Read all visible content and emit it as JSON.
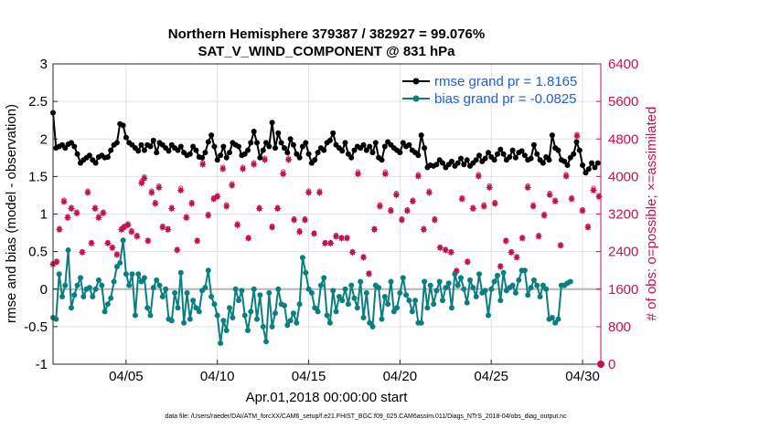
{
  "chart_data": {
    "type": "line",
    "title_line1": "Northern Hemisphere 379387 / 382927 = 99.076%",
    "title_line2": "SAT_V_WIND_COMPONENT @ 831 hPa",
    "xlabel": "Apr.01,2018 00:00:00 start",
    "ylabel": "rmse and bias (model - observation)",
    "ylabel_right": "# of obs: o=possible; ×=assimilated",
    "xlim": [
      1,
      31
    ],
    "ylim": [
      -1,
      3
    ],
    "ylim_right": [
      0,
      6400
    ],
    "x_ticks": [
      5,
      10,
      15,
      20,
      25,
      30
    ],
    "x_tick_labels": [
      "04/05",
      "04/10",
      "04/15",
      "04/20",
      "04/25",
      "04/30"
    ],
    "y_ticks": [
      -1,
      -0.5,
      0,
      0.5,
      1,
      1.5,
      2,
      2.5,
      3
    ],
    "y_tick_labels": [
      "-1",
      "-0.5",
      "0",
      "0.5",
      "1",
      "1.5",
      "2",
      "2.5",
      "3"
    ],
    "y_right_ticks": [
      0,
      800,
      1600,
      2400,
      3200,
      4000,
      4800,
      5600,
      6400
    ],
    "y_right_tick_labels": [
      "0",
      "800",
      "1600",
      "2400",
      "3200",
      "4000",
      "4800",
      "5600",
      "6400"
    ],
    "grid": true,
    "legend_position": "top-right",
    "series": [
      {
        "name": "rmse grand pr = 1.8165",
        "color": "#000000",
        "values": [
          2.35,
          1.88,
          1.9,
          1.92,
          1.88,
          1.93,
          1.95,
          1.9,
          1.8,
          1.68,
          1.72,
          1.75,
          1.78,
          1.72,
          1.68,
          1.76,
          1.78,
          1.75,
          1.76,
          1.85,
          1.92,
          1.95,
          2.2,
          2.18,
          2.02,
          1.95,
          1.92,
          1.88,
          1.84,
          1.92,
          1.85,
          1.92,
          1.9,
          1.98,
          1.82,
          1.95,
          1.92,
          1.88,
          1.84,
          1.92,
          1.88,
          1.85,
          1.9,
          1.82,
          1.78,
          1.8,
          1.9,
          1.85,
          1.76,
          1.75,
          1.82,
          1.96,
          2.05,
          1.9,
          1.72,
          1.78,
          1.9,
          1.75,
          1.82,
          1.95,
          1.92,
          1.9,
          1.78,
          1.8,
          1.85,
          1.95,
          2.1,
          1.95,
          1.75,
          1.85,
          1.95,
          1.9,
          2.22,
          1.88,
          2.08,
          1.95,
          1.88,
          1.82,
          2.0,
          1.92,
          1.8,
          1.75,
          1.9,
          1.95,
          1.8,
          1.68,
          1.72,
          1.82,
          1.88,
          1.85,
          1.95,
          1.98,
          2.08,
          1.92,
          1.88,
          1.84,
          1.95,
          1.8,
          1.75,
          1.85,
          1.9,
          1.88,
          1.92,
          1.85,
          1.9,
          1.82,
          1.95,
          1.75,
          1.72,
          1.9,
          1.96,
          1.92,
          1.88,
          1.85,
          1.82,
          1.95,
          1.9,
          1.92,
          1.85,
          1.82,
          1.78,
          2.05,
          1.88,
          1.62,
          1.65,
          1.64,
          1.66,
          1.72,
          1.68,
          1.62,
          1.66,
          1.7,
          1.64,
          1.68,
          1.74,
          1.66,
          1.72,
          1.64,
          1.68,
          1.72,
          1.78,
          1.7,
          1.74,
          1.82,
          1.76,
          1.72,
          1.8,
          1.86,
          1.8,
          1.72,
          1.76,
          1.85,
          1.75,
          1.82,
          1.84,
          1.78,
          1.72,
          1.74,
          1.92,
          1.8,
          1.72,
          1.68,
          1.76,
          1.72,
          2.05,
          1.88,
          1.85,
          1.72,
          1.7,
          1.65,
          1.75,
          1.8,
          1.96,
          1.85,
          1.65,
          1.55,
          1.6,
          1.68,
          1.62,
          1.68
        ],
        "x_start": 1,
        "x_step": 0.1667
      },
      {
        "name": "bias grand pr = -0.0825",
        "color": "#0b7f7f",
        "values": [
          -0.38,
          -0.4,
          0.2,
          -0.1,
          0.05,
          0.52,
          -0.25,
          -0.08,
          0.05,
          0.15,
          -0.1,
          0.0,
          0.02,
          -0.1,
          0.0,
          0.12,
          0.05,
          -0.3,
          -0.2,
          -0.12,
          0.1,
          0.3,
          0.35,
          0.65,
          0.2,
          0.05,
          0.2,
          -0.35,
          0.2,
          0.1,
          0.15,
          -0.25,
          -0.35,
          0.02,
          0.12,
          0.05,
          -0.1,
          0.0,
          -0.4,
          -0.42,
          -0.05,
          -0.25,
          0.22,
          -0.45,
          -0.05,
          -0.4,
          -0.15,
          -0.25,
          -0.3,
          -0.02,
          0.02,
          0.25,
          -0.1,
          -0.2,
          -0.35,
          -0.72,
          -0.42,
          -0.55,
          -0.25,
          -0.38,
          0.0,
          -0.15,
          -0.02,
          -0.35,
          -0.55,
          -0.3,
          0.0,
          -0.4,
          -0.08,
          -0.5,
          -0.7,
          -0.05,
          -0.5,
          -0.32,
          0.0,
          -0.2,
          -0.22,
          -0.48,
          -0.42,
          -0.32,
          -0.45,
          -0.2,
          0.42,
          0.22,
          0.0,
          -0.05,
          -0.25,
          -0.3,
          0.05,
          0.15,
          -0.35,
          -0.45,
          -0.02,
          -0.3,
          -0.1,
          -0.15,
          0.0,
          -0.2,
          0.05,
          -0.12,
          -0.25,
          0.1,
          -0.38,
          -0.05,
          -0.45,
          -0.5,
          0.05,
          0.02,
          -0.4,
          -0.1,
          -0.2,
          0.1,
          -0.3,
          -0.25,
          -0.05,
          0.15,
          -0.08,
          -0.15,
          -0.3,
          -0.15,
          -0.45,
          -0.45,
          0.1,
          -0.25,
          0.05,
          -0.2,
          -0.02,
          0.1,
          -0.15,
          0.02,
          0.08,
          -0.25,
          0.2,
          0.05,
          0.15,
          0.0,
          -0.18,
          0.12,
          0.02,
          -0.1,
          0.2,
          -0.05,
          -0.02,
          -0.35,
          0.0,
          0.1,
          0.18,
          -0.15,
          0.22,
          -0.02,
          0.02,
          0.05,
          -0.05,
          0.12,
          0.25,
          0.25,
          -0.08,
          0.02,
          0.12,
          0.05,
          -0.1,
          0.05,
          0.0,
          -0.4,
          -0.38,
          -0.45,
          -0.4,
          0.05,
          0.05,
          0.08,
          0.1
        ],
        "x_start": 1,
        "x_step": 0.1667
      }
    ],
    "obs_possible": {
      "name": "possible",
      "x": [
        1.0,
        1.2,
        1.35,
        1.6,
        1.8,
        2.0,
        2.3,
        2.6,
        2.9,
        3.1,
        3.3,
        3.5,
        3.75,
        4.0,
        4.25,
        4.5,
        4.75,
        4.9,
        5.1,
        5.3,
        5.6,
        5.85,
        6.0,
        6.2,
        6.4,
        6.6,
        6.8,
        7.0,
        7.3,
        7.5,
        7.8,
        8.0,
        8.3,
        8.6,
        8.9,
        9.2,
        9.5,
        9.8,
        10.0,
        10.3,
        10.5,
        10.8,
        11.1,
        11.4,
        11.7,
        12.0,
        12.3,
        12.6,
        13.0,
        13.3,
        13.6,
        13.9,
        14.2,
        14.5,
        14.8,
        15.0,
        15.3,
        15.6,
        15.9,
        16.2,
        16.5,
        16.8,
        17.1,
        17.4,
        17.7,
        18.0,
        18.3,
        18.6,
        18.9,
        19.2,
        19.5,
        19.8,
        20.1,
        20.4,
        20.7,
        21.0,
        21.3,
        21.6,
        21.9,
        22.2,
        22.5,
        22.8,
        23.1,
        23.4,
        23.7,
        24.0,
        24.3,
        24.6,
        24.9,
        25.2,
        25.5,
        25.8,
        26.1,
        26.4,
        26.7,
        27.0,
        27.3,
        27.6,
        27.9,
        28.2,
        28.5,
        28.8,
        29.1,
        29.4,
        29.7,
        30.0,
        30.3,
        30.6,
        30.9
      ],
      "y": [
        2150,
        2200,
        2900,
        3500,
        3150,
        3350,
        3250,
        2400,
        3700,
        2600,
        3350,
        3150,
        3250,
        2600,
        2500,
        2350,
        2900,
        2950,
        3000,
        2850,
        2750,
        3900,
        4000,
        2650,
        3700,
        3450,
        3800,
        2950,
        2900,
        3350,
        2450,
        3750,
        3150,
        3450,
        2650,
        4300,
        3200,
        3550,
        3600,
        4200,
        3400,
        3850,
        3000,
        4200,
        2700,
        4300,
        3350,
        4400,
        2950,
        3350,
        4100,
        4400,
        3100,
        2850,
        3100,
        3700,
        2800,
        3700,
        2600,
        2600,
        2750,
        2700,
        2700,
        2400,
        4100,
        2300,
        1950,
        2900,
        3400,
        4100,
        3300,
        3650,
        3100,
        3300,
        3500,
        4050,
        2900,
        3700,
        3100,
        2500,
        2450,
        2400,
        2000,
        3550,
        2200,
        3350,
        4050,
        3400,
        3800,
        3450,
        2100,
        2650,
        2400,
        2300,
        2700,
        3800,
        3400,
        2750,
        3200,
        3650,
        3500,
        2550,
        4050,
        3550,
        4900,
        3300,
        2950,
        3750,
        3600
      ]
    },
    "obs_assimilated": {
      "name": "assimilated",
      "x": [
        1.0,
        1.2,
        1.35,
        1.6,
        1.8,
        2.0,
        2.3,
        2.6,
        2.9,
        3.1,
        3.3,
        3.5,
        3.75,
        4.0,
        4.25,
        4.5,
        4.75,
        4.9,
        5.1,
        5.3,
        5.6,
        5.85,
        6.0,
        6.2,
        6.4,
        6.6,
        6.8,
        7.0,
        7.3,
        7.5,
        7.8,
        8.0,
        8.3,
        8.6,
        8.9,
        9.2,
        9.5,
        9.8,
        10.0,
        10.3,
        10.5,
        10.8,
        11.1,
        11.4,
        11.7,
        12.0,
        12.3,
        12.6,
        13.0,
        13.3,
        13.6,
        13.9,
        14.2,
        14.5,
        14.8,
        15.0,
        15.3,
        15.6,
        15.9,
        16.2,
        16.5,
        16.8,
        17.1,
        17.4,
        17.7,
        18.0,
        18.3,
        18.6,
        18.9,
        19.2,
        19.5,
        19.8,
        20.1,
        20.4,
        20.7,
        21.0,
        21.3,
        21.6,
        21.9,
        22.2,
        22.5,
        22.8,
        23.1,
        23.4,
        23.7,
        24.0,
        24.3,
        24.6,
        24.9,
        25.2,
        25.5,
        25.8,
        26.1,
        26.4,
        26.7,
        27.0,
        27.3,
        27.6,
        27.9,
        28.2,
        28.5,
        28.8,
        29.1,
        29.4,
        29.7,
        30.0,
        30.3,
        30.6,
        30.9
      ],
      "y": [
        2130,
        2180,
        2870,
        3460,
        3120,
        3320,
        3220,
        2380,
        3660,
        2580,
        3320,
        3120,
        3220,
        2580,
        2480,
        2330,
        2870,
        2920,
        2970,
        2820,
        2720,
        3860,
        3960,
        2630,
        3660,
        3420,
        3760,
        2920,
        2870,
        3320,
        2430,
        3710,
        3120,
        3420,
        2630,
        4260,
        3170,
        3520,
        3570,
        4160,
        3370,
        3810,
        2970,
        4160,
        2680,
        4260,
        3320,
        4360,
        2920,
        3320,
        4060,
        4360,
        3070,
        2820,
        3070,
        3660,
        2780,
        3660,
        2580,
        2580,
        2720,
        2680,
        2680,
        2380,
        4060,
        2280,
        1930,
        2870,
        3370,
        4060,
        3270,
        3610,
        3070,
        3270,
        3470,
        4010,
        2870,
        3660,
        3070,
        2480,
        2430,
        2380,
        1980,
        3520,
        2180,
        3320,
        4010,
        3370,
        3760,
        3420,
        2080,
        2630,
        2380,
        2280,
        2680,
        3760,
        3370,
        2720,
        3170,
        3610,
        3470,
        2530,
        4010,
        3520,
        4860,
        3270,
        2920,
        3710,
        3570
      ]
    }
  },
  "footer": {
    "data_file": "data file: /Users/raeder/DAI/ATM_forcXX/CAM6_setup/f.e21.FHIST_BGC.f09_025.CAM6assim.011/Diags_NTrS_2018-04/obs_diag_output.nc"
  }
}
